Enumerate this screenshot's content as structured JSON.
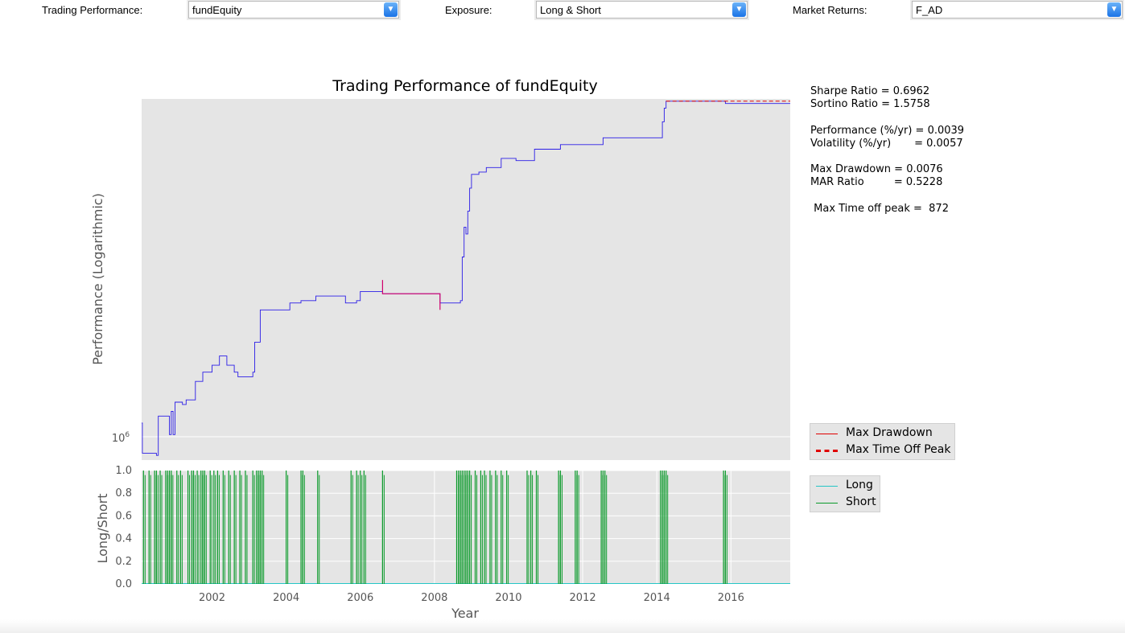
{
  "controls": {
    "trading_label": "Trading Performance:",
    "trading_value": "fundEquity",
    "exposure_label": "Exposure:",
    "exposure_value": "Long & Short",
    "market_label": "Market Returns:",
    "market_value": "F_AD"
  },
  "icons": {
    "dropdown": "chevron-down-icon"
  },
  "stats": {
    "sharpe": "Sharpe Ratio = 0.6962",
    "sortino": "Sortino Ratio = 1.5758",
    "performance": "Performance (%/yr) = 0.0039",
    "volatility": "Volatility (%/yr)       = 0.0057",
    "max_drawdown": "Max Drawdown = 0.0076",
    "mar": "MAR Ratio         = 0.5228",
    "time_off_peak": " Max Time off peak =  872"
  },
  "colors": {
    "equity": "#2b1de6",
    "drawdown": "#d1006b",
    "time_off_peak": "#e00000",
    "long": "#25c6c6",
    "short": "#0a9a2a",
    "plot_bg": "#e5e5e5",
    "grid": "#ffffff"
  },
  "chart_data": [
    {
      "type": "line",
      "title": "Trading Performance of fundEquity",
      "xlabel": "",
      "ylabel": "Performance (Logarithmic)",
      "log_scale": true,
      "grid": true,
      "y_tick_labels": [
        "10^6"
      ],
      "xlim": [
        2000.1,
        2017.6
      ],
      "series": [
        {
          "name": "fundEquity",
          "points": [
            [
              2000.1,
              1.0
            ],
            [
              2000.12,
              0.9987
            ],
            [
              2000.5,
              0.9986
            ],
            [
              2000.55,
              1.0003
            ],
            [
              2000.8,
              1.0003
            ],
            [
              2000.85,
              0.9995
            ],
            [
              2000.9,
              1.0005
            ],
            [
              2000.95,
              0.9995
            ],
            [
              2001.0,
              1.0009
            ],
            [
              2001.2,
              1.0008
            ],
            [
              2001.3,
              1.001
            ],
            [
              2001.5,
              1.001
            ],
            [
              2001.55,
              1.0018
            ],
            [
              2001.7,
              1.0018
            ],
            [
              2001.75,
              1.0022
            ],
            [
              2001.9,
              1.0022
            ],
            [
              2002.0,
              1.0025
            ],
            [
              2002.2,
              1.0029
            ],
            [
              2002.4,
              1.0025
            ],
            [
              2002.6,
              1.0022
            ],
            [
              2002.7,
              1.002
            ],
            [
              2003.0,
              1.002
            ],
            [
              2003.1,
              1.0022
            ],
            [
              2003.15,
              1.0035
            ],
            [
              2003.3,
              1.0049
            ],
            [
              2003.5,
              1.0049
            ],
            [
              2004.0,
              1.0049
            ],
            [
              2004.1,
              1.0052
            ],
            [
              2004.4,
              1.0053
            ],
            [
              2004.8,
              1.0055
            ],
            [
              2005.5,
              1.0055
            ],
            [
              2005.6,
              1.0052
            ],
            [
              2005.9,
              1.0053
            ],
            [
              2006.0,
              1.0057
            ],
            [
              2006.5,
              1.0057
            ],
            [
              2006.6,
              1.0056
            ],
            [
              2007.0,
              1.0056
            ],
            [
              2007.5,
              1.0056
            ],
            [
              2008.1,
              1.0056
            ],
            [
              2008.15,
              1.0052
            ],
            [
              2008.6,
              1.0052
            ],
            [
              2008.7,
              1.0053
            ],
            [
              2008.75,
              1.0072
            ],
            [
              2008.8,
              1.0085
            ],
            [
              2008.85,
              1.0082
            ],
            [
              2008.9,
              1.0092
            ],
            [
              2008.95,
              1.0102
            ],
            [
              2009.0,
              1.0108
            ],
            [
              2009.2,
              1.0109
            ],
            [
              2009.4,
              1.0111
            ],
            [
              2009.6,
              1.0111
            ],
            [
              2009.8,
              1.0115
            ],
            [
              2010.0,
              1.0115
            ],
            [
              2010.2,
              1.0114
            ],
            [
              2010.5,
              1.0114
            ],
            [
              2010.7,
              1.0119
            ],
            [
              2011.0,
              1.0119
            ],
            [
              2011.4,
              1.0121
            ],
            [
              2011.8,
              1.0121
            ],
            [
              2011.85,
              1.0121
            ],
            [
              2012.3,
              1.0121
            ],
            [
              2012.5,
              1.0121
            ],
            [
              2012.55,
              1.0124
            ],
            [
              2013.0,
              1.0124
            ],
            [
              2013.5,
              1.0124
            ],
            [
              2014.1,
              1.0124
            ],
            [
              2014.15,
              1.0131
            ],
            [
              2014.2,
              1.0137
            ],
            [
              2014.25,
              1.014
            ],
            [
              2015.0,
              1.014
            ],
            [
              2015.8,
              1.014
            ],
            [
              2015.85,
              1.0139
            ],
            [
              2016.5,
              1.0139
            ],
            [
              2017.6,
              1.0139
            ]
          ]
        },
        {
          "name": "Max Drawdown",
          "points": [
            [
              2006.6,
              1.0062
            ],
            [
              2006.6,
              1.0056
            ],
            [
              2008.15,
              1.0056
            ],
            [
              2008.15,
              1.0049
            ]
          ]
        },
        {
          "name": "Max Time Off Peak",
          "points": [
            [
              2014.25,
              1.014
            ],
            [
              2017.6,
              1.014
            ]
          ]
        }
      ],
      "legend": {
        "placement": "outside-right",
        "entries": [
          "Max Drawdown",
          "Max Time Off Peak"
        ]
      }
    },
    {
      "type": "bar",
      "xlabel": "Year",
      "ylabel": "Long/Short",
      "ylim": [
        0,
        1
      ],
      "y_ticks": [
        "0.0",
        "0.2",
        "0.4",
        "0.6",
        "0.8",
        "1.0"
      ],
      "x_ticks": [
        "2002",
        "2004",
        "2006",
        "2008",
        "2010",
        "2012",
        "2014",
        "2016"
      ],
      "xlim": [
        2000.1,
        2017.6
      ],
      "grid": true,
      "series": [
        {
          "name": "Long",
          "values": []
        },
        {
          "name": "Short",
          "x": [
            2000.15,
            2000.3,
            2000.45,
            2000.5,
            2000.6,
            2000.75,
            2000.8,
            2000.85,
            2000.9,
            2001.05,
            2001.15,
            2001.35,
            2001.45,
            2001.5,
            2001.6,
            2001.7,
            2001.75,
            2001.8,
            2001.95,
            2002.05,
            2002.15,
            2002.3,
            2002.45,
            2002.6,
            2002.75,
            2002.9,
            2003.1,
            2003.2,
            2003.25,
            2003.3,
            2003.35,
            2004.0,
            2004.4,
            2004.45,
            2004.85,
            2005.75,
            2005.9,
            2006.0,
            2006.1,
            2006.6,
            2008.6,
            2008.65,
            2008.7,
            2008.75,
            2008.8,
            2008.85,
            2008.9,
            2008.95,
            2009.1,
            2009.25,
            2009.35,
            2009.5,
            2009.65,
            2009.8,
            2009.95,
            2010.5,
            2010.6,
            2010.75,
            2011.35,
            2011.4,
            2011.8,
            2011.85,
            2012.5,
            2012.55,
            2012.6,
            2014.1,
            2014.15,
            2014.2,
            2014.25,
            2015.8,
            2015.85
          ]
        }
      ],
      "legend": {
        "placement": "outside-right",
        "entries": [
          "Long",
          "Short"
        ]
      }
    }
  ]
}
